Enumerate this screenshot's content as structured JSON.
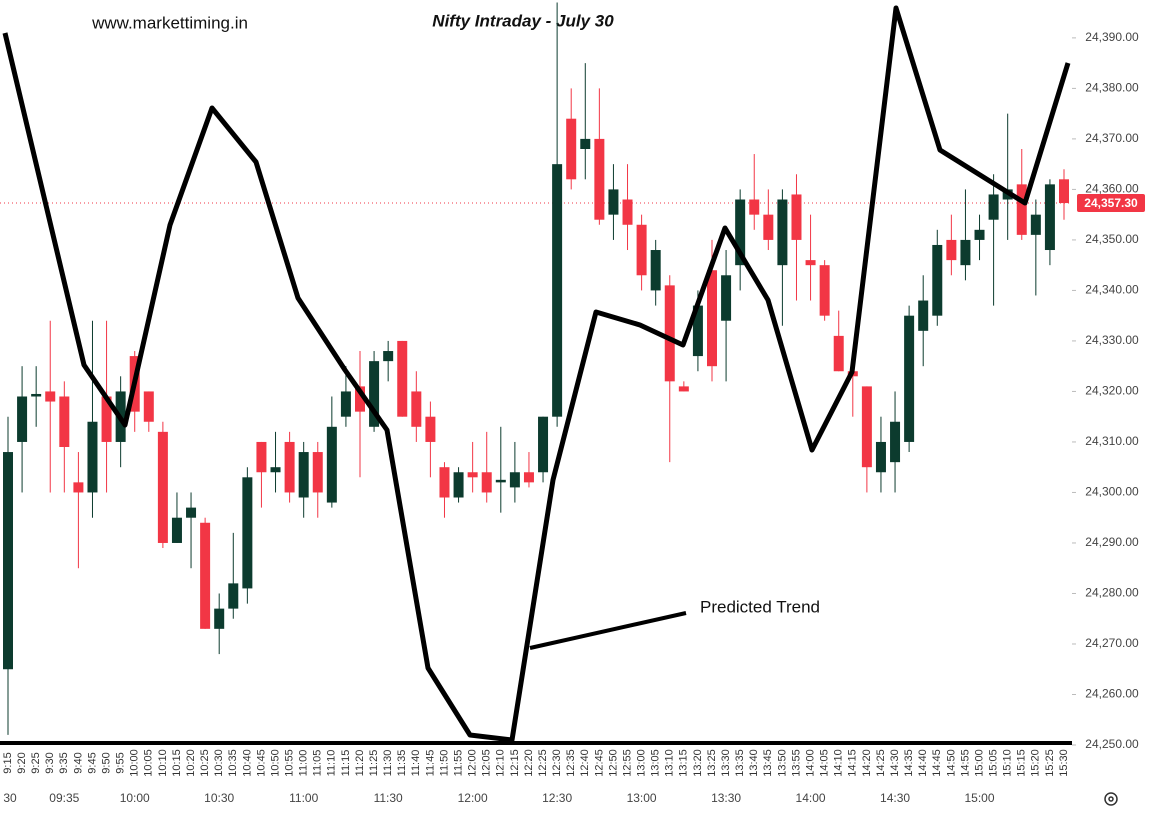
{
  "chart_data": {
    "type": "candlestick",
    "title": "Nifty Intraday - July 30",
    "watermark": "www.markettiming.in",
    "annotation": "Predicted Trend",
    "up_color": "#0c3b2e",
    "down_color": "#f23645",
    "categories": [
      "9:15",
      "9:20",
      "9:25",
      "9:30",
      "9:35",
      "9:40",
      "9:45",
      "9:50",
      "9:55",
      "10:00",
      "10:05",
      "10:10",
      "10:15",
      "10:20",
      "10:25",
      "10:30",
      "10:35",
      "10:40",
      "10:45",
      "10:50",
      "10:55",
      "11:00",
      "11:05",
      "11:10",
      "11:15",
      "11:20",
      "11:25",
      "11:30",
      "11:35",
      "11:40",
      "11:45",
      "11:50",
      "11:55",
      "12:00",
      "12:05",
      "12:10",
      "12:15",
      "12:20",
      "12:25",
      "12:30",
      "12:35",
      "12:40",
      "12:45",
      "12:50",
      "12:55",
      "13:00",
      "13:05",
      "13:10",
      "13:15",
      "13:20",
      "13:25",
      "13:30",
      "13:35",
      "13:40",
      "13:45",
      "13:50",
      "13:55",
      "14:00",
      "14:05",
      "14:10",
      "14:15",
      "14:20",
      "14:25",
      "14:30",
      "14:35",
      "14:40",
      "14:45",
      "14:50",
      "14:55",
      "15:00",
      "15:05",
      "15:10",
      "15:15",
      "15:20",
      "15:25",
      "15:30"
    ],
    "open": [
      24265,
      24310,
      24319,
      24320,
      24319,
      24302,
      24300,
      24319,
      24310,
      24327,
      24320,
      24312,
      24290,
      24295,
      24294,
      24273,
      24277,
      24281,
      24310,
      24304,
      24310,
      24299,
      24308,
      24298,
      24315,
      24321,
      24313,
      24326,
      24330,
      24320,
      24315,
      24305,
      24299,
      24304,
      24304,
      24302,
      24301,
      24304,
      24304,
      24315,
      24374,
      24368,
      24370,
      24355,
      24358,
      24353,
      24340,
      24341,
      24321,
      24327,
      24344,
      24334,
      24345,
      24358,
      24355,
      24345,
      24359,
      24346,
      24345,
      24331,
      24324,
      24321,
      24304,
      24306,
      24310,
      24332,
      24335,
      24350,
      24345,
      24350,
      24354,
      24358,
      24361,
      24351,
      24348,
      24362
    ],
    "high": [
      24315,
      24325,
      24325,
      24334,
      24322,
      24308,
      24334,
      24334,
      24323,
      24328,
      24320,
      24314,
      24300,
      24300,
      24295,
      24280,
      24292,
      24305,
      24310,
      24312,
      24312,
      24310,
      24310,
      24319,
      24325,
      24328,
      24328,
      24330,
      24330,
      24324,
      24318,
      24306,
      24305,
      24310,
      24312,
      24313,
      24310,
      24308,
      24315,
      24397,
      24380,
      24385,
      24380,
      24365,
      24365,
      24355,
      24350,
      24343,
      24322,
      24340,
      24350,
      24348,
      24360,
      24367,
      24360,
      24360,
      24363,
      24355,
      24346,
      24336,
      24327,
      24321,
      24315,
      24320,
      24337,
      24343,
      24352,
      24355,
      24360,
      24355,
      24363,
      24375,
      24368,
      24358,
      24362,
      24364
    ],
    "low": [
      24252,
      24300,
      24313,
      24300,
      24300,
      24285,
      24295,
      24300,
      24305,
      24312,
      24312,
      24289,
      24290,
      24285,
      24273,
      24268,
      24275,
      24278,
      24297,
      24300,
      24298,
      24295,
      24295,
      24297,
      24313,
      24303,
      24312,
      24322,
      24315,
      24310,
      24303,
      24295,
      24298,
      24300,
      24298,
      24296,
      24298,
      24301,
      24302,
      24313,
      24360,
      24362,
      24353,
      24350,
      24348,
      24340,
      24337,
      24306,
      24320,
      24324,
      24322,
      24322,
      24340,
      24352,
      24348,
      24333,
      24338,
      24338,
      24334,
      24324,
      24315,
      24300,
      24300,
      24300,
      24308,
      24325,
      24333,
      24343,
      24342,
      24346,
      24337,
      24350,
      24350,
      24339,
      24345,
      24354
    ],
    "close": [
      24308,
      24319,
      24319.5,
      24318,
      24309,
      24300,
      24314,
      24310,
      24320,
      24316,
      24314,
      24290,
      24295,
      24297,
      24273,
      24277,
      24282,
      24303,
      24304,
      24305,
      24300,
      24308,
      24300,
      24313,
      24320,
      24316,
      24326,
      24328,
      24315,
      24313,
      24310,
      24299,
      24304,
      24303,
      24300,
      24302.5,
      24304,
      24302,
      24315,
      24365,
      24362,
      24370,
      24354,
      24360,
      24353,
      24343,
      24348,
      24322,
      24320,
      24337,
      24325,
      24343,
      24358,
      24355,
      24350,
      24358,
      24350,
      24345,
      24335,
      24324,
      24323,
      24305,
      24310,
      24314,
      24335,
      24338,
      24349,
      24346,
      24350,
      24352,
      24359,
      24360,
      24351,
      24355,
      24361,
      24357.3
    ],
    "ylim": [
      24250,
      24397.5
    ],
    "yticks": [
      {
        "value": 24250,
        "label": "24,250.00"
      },
      {
        "value": 24260,
        "label": "24,260.00"
      },
      {
        "value": 24270,
        "label": "24,270.00"
      },
      {
        "value": 24280,
        "label": "24,280.00"
      },
      {
        "value": 24290,
        "label": "24,290.00"
      },
      {
        "value": 24300,
        "label": "24,300.00"
      },
      {
        "value": 24310,
        "label": "24,310.00"
      },
      {
        "value": 24320,
        "label": "24,320.00"
      },
      {
        "value": 24330,
        "label": "24,330.00"
      },
      {
        "value": 24340,
        "label": "24,340.00"
      },
      {
        "value": 24350,
        "label": "24,350.00"
      },
      {
        "value": 24360,
        "label": "24,360.00"
      },
      {
        "value": 24370,
        "label": "24,370.00"
      },
      {
        "value": 24380,
        "label": "24,380.00"
      },
      {
        "value": 24390,
        "label": "24,390.00"
      }
    ],
    "time_labels": [
      {
        "at": "9:15",
        "label": "30"
      },
      {
        "at": "9:35",
        "label": "09:35"
      },
      {
        "at": "10:00",
        "label": "10:00"
      },
      {
        "at": "10:30",
        "label": "10:30"
      },
      {
        "at": "11:00",
        "label": "11:00"
      },
      {
        "at": "11:30",
        "label": "11:30"
      },
      {
        "at": "12:00",
        "label": "12:00"
      },
      {
        "at": "12:30",
        "label": "12:30"
      },
      {
        "at": "13:00",
        "label": "13:00"
      },
      {
        "at": "13:30",
        "label": "13:30"
      },
      {
        "at": "14:00",
        "label": "14:00"
      },
      {
        "at": "14:30",
        "label": "14:30"
      },
      {
        "at": "15:00",
        "label": "15:00"
      }
    ],
    "last_price": {
      "value": 24357.3,
      "label": "24,357.30",
      "color": "#f23645"
    }
  }
}
